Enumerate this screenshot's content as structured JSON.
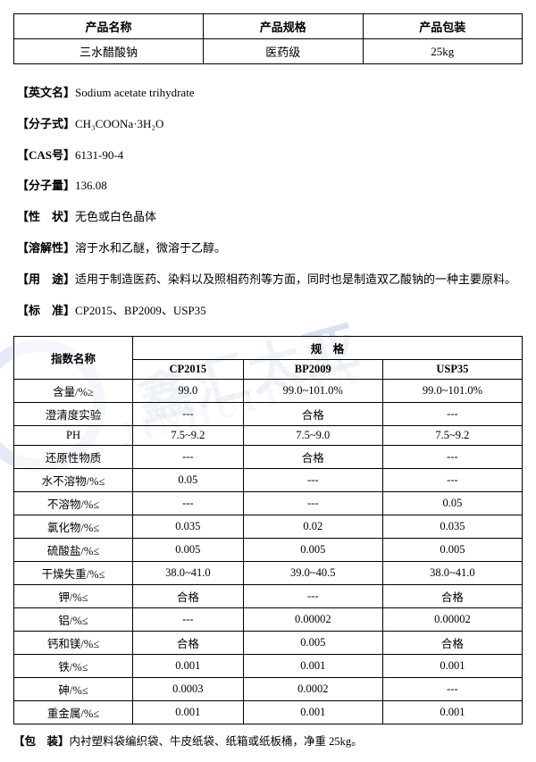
{
  "topTable": {
    "headers": [
      "产品名称",
      "产品规格",
      "产品包装"
    ],
    "row": [
      "三水醋酸钠",
      "医药级",
      "25kg"
    ]
  },
  "info": {
    "englishName": {
      "label": "【英文名】",
      "value": "Sodium acetate trihydrate"
    },
    "formula": {
      "label": "【分子式】",
      "value": "CH₃COONa·3H₂O"
    },
    "cas": {
      "label": "【CAS号】",
      "value": "6131-90-4"
    },
    "mw": {
      "label": "【分子量】",
      "value": "136.08"
    },
    "appearance": {
      "label": "【性　状】",
      "value": "无色或白色晶体"
    },
    "solubility": {
      "label": "【溶解性】",
      "value": "溶于水和乙醚，微溶于乙醇。"
    },
    "usage": {
      "label": "【用　途】",
      "value": "适用于制造医药、染料以及照相药剂等方面，同时也是制造双乙酸钠的一种主要原料。"
    },
    "standard": {
      "label": "【标　准】",
      "value": "CP2015、BP2009、USP35"
    }
  },
  "specTable": {
    "cornerHeader": "指数名称",
    "groupHeader": "规　格",
    "cols": [
      "CP2015",
      "BP2009",
      "USP35"
    ],
    "rows": [
      {
        "label": "含量/%≥",
        "v": [
          "99.0",
          "99.0~101.0%",
          "99.0~101.0%"
        ]
      },
      {
        "label": "澄清度实验",
        "v": [
          "---",
          "合格",
          "---"
        ]
      },
      {
        "label": "PH",
        "v": [
          "7.5~9.2",
          "7.5~9.0",
          "7.5~9.2"
        ]
      },
      {
        "label": "还原性物质",
        "v": [
          "---",
          "合格",
          "---"
        ]
      },
      {
        "label": "水不溶物/%≤",
        "v": [
          "0.05",
          "---",
          "---"
        ]
      },
      {
        "label": "不溶物/%≤",
        "v": [
          "---",
          "---",
          "0.05"
        ]
      },
      {
        "label": "氯化物/%≤",
        "v": [
          "0.035",
          "0.02",
          "0.035"
        ]
      },
      {
        "label": "硫酸盐/%≤",
        "v": [
          "0.005",
          "0.005",
          "0.005"
        ]
      },
      {
        "label": "干燥失重/%≤",
        "v": [
          "38.0~41.0",
          "39.0~40.5",
          "38.0~41.0"
        ]
      },
      {
        "label": "钾/%≤",
        "v": [
          "合格",
          "---",
          "合格"
        ]
      },
      {
        "label": "铝/%≤",
        "v": [
          "---",
          "0.00002",
          "0.00002"
        ]
      },
      {
        "label": "钙和镁/%≤",
        "v": [
          "合格",
          "0.005",
          "合格"
        ]
      },
      {
        "label": "铁/%≤",
        "v": [
          "0.001",
          "0.001",
          "0.001"
        ]
      },
      {
        "label": "砷/%≤",
        "v": [
          "0.0003",
          "0.0002",
          "---"
        ]
      },
      {
        "label": "重金属/%≤",
        "v": [
          "0.001",
          "0.001",
          "0.001"
        ]
      }
    ]
  },
  "footer": {
    "label": "【包　装】",
    "value": "内衬塑料袋编织袋、牛皮纸袋、纸箱或纸板桶，净重 25kg。"
  },
  "watermark": {
    "text1": "鑫汇太亚",
    "text2": "JINHUITAYA"
  }
}
